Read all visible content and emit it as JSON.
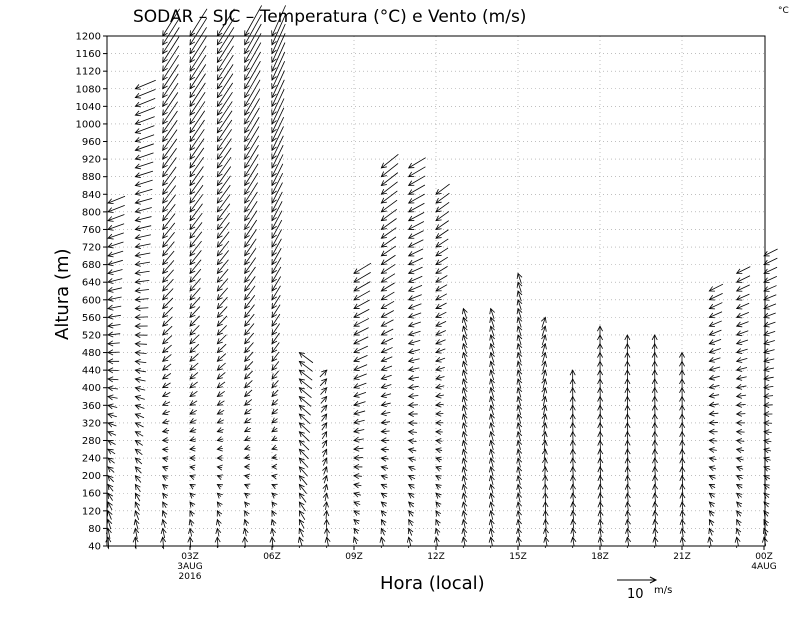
{
  "title": "SODAR – SJC – Temperatura (°C) e Vento (m/s)",
  "corner_unit": "°C",
  "chart_data": {
    "type": "wind-barb-time-height",
    "title": "SODAR – SJC – Temperatura (°C) e Vento (m/s)",
    "xlabel": "Hora (local)",
    "ylabel": "Altura (m)",
    "ylim": [
      40,
      1200
    ],
    "xlim_hours": [
      0,
      24
    ],
    "y_ticks": [
      40,
      80,
      120,
      160,
      200,
      240,
      280,
      320,
      360,
      400,
      440,
      480,
      520,
      560,
      600,
      640,
      680,
      720,
      760,
      800,
      840,
      880,
      920,
      960,
      1000,
      1040,
      1080,
      1120,
      1160,
      1200
    ],
    "x_ticks": [
      {
        "hour": 3,
        "label": "03Z",
        "sub1": "3AUG",
        "sub2": "2016"
      },
      {
        "hour": 6,
        "label": "06Z",
        "sub1": "",
        "sub2": ""
      },
      {
        "hour": 9,
        "label": "09Z",
        "sub1": "",
        "sub2": ""
      },
      {
        "hour": 12,
        "label": "12Z",
        "sub1": "",
        "sub2": ""
      },
      {
        "hour": 15,
        "label": "15Z",
        "sub1": "",
        "sub2": ""
      },
      {
        "hour": 18,
        "label": "18Z",
        "sub1": "",
        "sub2": ""
      },
      {
        "hour": 21,
        "label": "21Z",
        "sub1": "",
        "sub2": ""
      },
      {
        "hour": 24,
        "label": "00Z",
        "sub1": "4AUG",
        "sub2": ""
      }
    ],
    "grid": true,
    "profile_step_hours": 1,
    "level_step_m": 20,
    "profiles": [
      {
        "hour": 0,
        "top": 820,
        "u_low": -0.2,
        "v_low": 3.5,
        "u_high": -5,
        "v_high": -2
      },
      {
        "hour": 1,
        "top": 1080,
        "u_low": -0.2,
        "v_low": 3.5,
        "u_high": -6,
        "v_high": -2.5
      },
      {
        "hour": 2,
        "top": 1200,
        "u_low": -0.3,
        "v_low": 3.5,
        "u_high": -5,
        "v_high": -8
      },
      {
        "hour": 3,
        "top": 1200,
        "u_low": -0.2,
        "v_low": 3.0,
        "u_high": -5,
        "v_high": -8
      },
      {
        "hour": 4,
        "top": 1200,
        "u_low": -0.2,
        "v_low": 3.0,
        "u_high": -5,
        "v_high": -8
      },
      {
        "hour": 5,
        "top": 1200,
        "u_low": -0.2,
        "v_low": 3.0,
        "u_high": -5,
        "v_high": -9
      },
      {
        "hour": 6,
        "top": 1200,
        "u_low": -0.3,
        "v_low": 3.0,
        "u_high": -4,
        "v_high": -9
      },
      {
        "hour": 7,
        "top": 480,
        "u_low": -0.8,
        "v_low": 2.5,
        "u_high": -4,
        "v_high": 3
      },
      {
        "hour": 8,
        "top": 440,
        "u_low": -0.5,
        "v_low": 2.5,
        "u_high": 2,
        "v_high": 2
      },
      {
        "hour": 9,
        "top": 660,
        "u_low": -0.8,
        "v_low": 2.0,
        "u_high": -5,
        "v_high": -3
      },
      {
        "hour": 10,
        "top": 900,
        "u_low": -0.6,
        "v_low": 2.5,
        "u_high": -5,
        "v_high": -4
      },
      {
        "hour": 11,
        "top": 900,
        "u_low": -0.6,
        "v_low": 2.5,
        "u_high": -5,
        "v_high": -3
      },
      {
        "hour": 12,
        "top": 840,
        "u_low": -0.4,
        "v_low": 2.5,
        "u_high": -4,
        "v_high": -3
      },
      {
        "hour": 13,
        "top": 580,
        "u_low": -0.5,
        "v_low": 2.5,
        "u_high": -1,
        "v_high": 3
      },
      {
        "hour": 14,
        "top": 580,
        "u_low": -0.5,
        "v_low": 2.5,
        "u_high": -1,
        "v_high": 3
      },
      {
        "hour": 15,
        "top": 660,
        "u_low": -0.5,
        "v_low": 2.5,
        "u_high": -1,
        "v_high": 3
      },
      {
        "hour": 16,
        "top": 560,
        "u_low": -0.5,
        "v_low": 2.5,
        "u_high": 1,
        "v_high": 3
      },
      {
        "hour": 17,
        "top": 440,
        "u_low": -0.4,
        "v_low": 2.5,
        "u_high": 0,
        "v_high": 3
      },
      {
        "hour": 18,
        "top": 540,
        "u_low": -0.4,
        "v_low": 2.5,
        "u_high": 0,
        "v_high": 3
      },
      {
        "hour": 19,
        "top": 520,
        "u_low": -0.4,
        "v_low": 2.5,
        "u_high": 0,
        "v_high": 3
      },
      {
        "hour": 20,
        "top": 520,
        "u_low": -0.4,
        "v_low": 2.5,
        "u_high": 0,
        "v_high": 3
      },
      {
        "hour": 21,
        "top": 480,
        "u_low": -0.4,
        "v_low": 2.5,
        "u_high": 0,
        "v_high": 3
      },
      {
        "hour": 22,
        "top": 620,
        "u_low": -0.5,
        "v_low": 2.5,
        "u_high": -4,
        "v_high": -2
      },
      {
        "hour": 23,
        "top": 660,
        "u_low": -0.5,
        "v_low": 2.5,
        "u_high": -4,
        "v_high": -2
      },
      {
        "hour": 24,
        "top": 700,
        "u_low": -0.5,
        "v_low": 2.5,
        "u_high": -4,
        "v_high": -2
      }
    ],
    "reference_vector": {
      "value": 10,
      "label": "10",
      "unit": "m/s"
    }
  }
}
